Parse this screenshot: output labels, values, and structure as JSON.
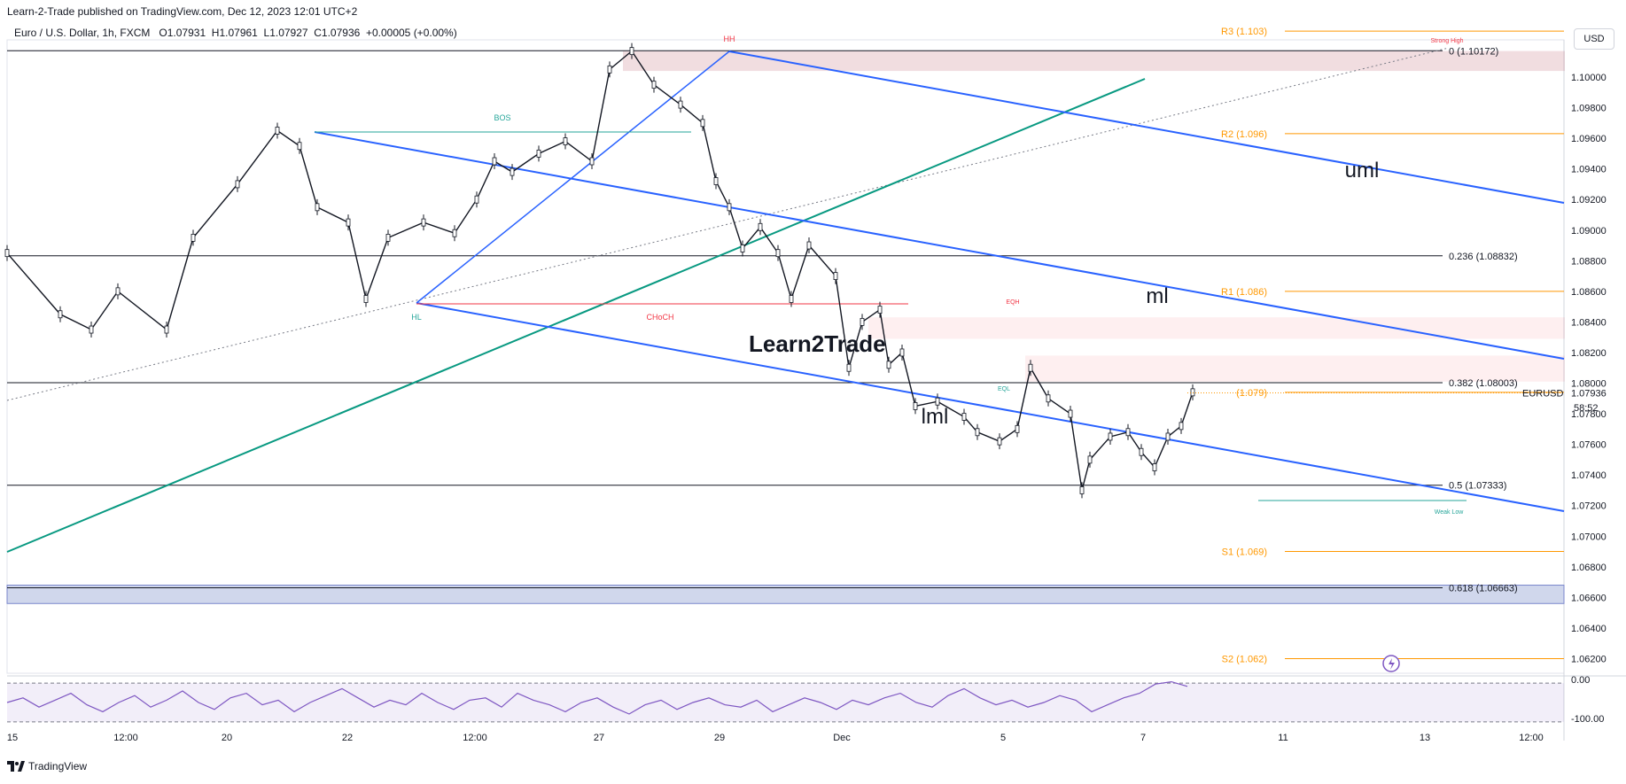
{
  "header": {
    "published": "Learn-2-Trade published on TradingView.com, Dec 12, 2023 12:01 UTC+2",
    "symbol": "Euro / U.S. Dollar, 1h, FXCM",
    "open": "O1.07931",
    "high": "H1.07961",
    "low": "L1.07927",
    "close": "C1.07936",
    "change": "+0.00005 (+0.00%)"
  },
  "currency_button": "USD",
  "footer": {
    "brand": "TradingView"
  },
  "countdown": "58:52",
  "colors": {
    "blue": "#2962ff",
    "green": "#089981",
    "orange": "#ff9800",
    "red": "#f23645",
    "teal": "#26a69a",
    "purple": "#7e57c2"
  },
  "chart_data": {
    "type": "candlestick",
    "symbol_label": "EURUSD",
    "last_price": 1.07936,
    "y_ticks": [
      "1.10000",
      "1.09800",
      "1.09600",
      "1.09400",
      "1.09200",
      "1.09000",
      "1.08800",
      "1.08600",
      "1.08400",
      "1.08200",
      "1.08000",
      "1.07800",
      "1.07600",
      "1.07400",
      "1.07200",
      "1.07000",
      "1.06800",
      "1.06600",
      "1.06400",
      "1.06200"
    ],
    "ylim": [
      1.0612,
      1.1034
    ],
    "x_ticks": [
      "15",
      "12:00",
      "20",
      "22",
      "12:00",
      "27",
      "29",
      "Dec",
      "5",
      "7",
      "11",
      "13",
      "12:00"
    ],
    "price_path": [
      [
        0,
        1.0885
      ],
      [
        60,
        1.0845
      ],
      [
        95,
        1.0835
      ],
      [
        125,
        1.086
      ],
      [
        180,
        1.0835
      ],
      [
        210,
        1.0895
      ],
      [
        260,
        1.093
      ],
      [
        305,
        1.0965
      ],
      [
        330,
        1.0955
      ],
      [
        350,
        1.0915
      ],
      [
        385,
        1.0905
      ],
      [
        405,
        1.0855
      ],
      [
        430,
        1.0895
      ],
      [
        470,
        1.0905
      ],
      [
        505,
        1.0898
      ],
      [
        530,
        1.092
      ],
      [
        550,
        1.0945
      ],
      [
        570,
        1.0938
      ],
      [
        600,
        1.095
      ],
      [
        630,
        1.0958
      ],
      [
        660,
        1.0945
      ],
      [
        680,
        1.1005
      ],
      [
        705,
        1.1017
      ],
      [
        730,
        1.0995
      ],
      [
        760,
        1.0982
      ],
      [
        785,
        1.097
      ],
      [
        800,
        1.0932
      ],
      [
        815,
        1.0915
      ],
      [
        830,
        1.0888
      ],
      [
        850,
        1.0902
      ],
      [
        870,
        1.0885
      ],
      [
        885,
        1.0855
      ],
      [
        905,
        1.089
      ],
      [
        935,
        1.087
      ],
      [
        950,
        1.081
      ],
      [
        965,
        1.084
      ],
      [
        985,
        1.0848
      ],
      [
        995,
        1.0812
      ],
      [
        1010,
        1.082
      ],
      [
        1025,
        1.0785
      ],
      [
        1050,
        1.0788
      ],
      [
        1080,
        1.0778
      ],
      [
        1095,
        1.0768
      ],
      [
        1120,
        1.0762
      ],
      [
        1140,
        1.077
      ],
      [
        1155,
        1.081
      ],
      [
        1175,
        1.079
      ],
      [
        1200,
        1.078
      ],
      [
        1213,
        1.073
      ],
      [
        1222,
        1.075
      ],
      [
        1245,
        1.0765
      ],
      [
        1265,
        1.0768
      ],
      [
        1280,
        1.0755
      ],
      [
        1295,
        1.0745
      ],
      [
        1310,
        1.0765
      ],
      [
        1325,
        1.0772
      ],
      [
        1338,
        1.0794
      ]
    ],
    "fib_levels": [
      {
        "label": "0 (1.10172)",
        "value": 1.10172
      },
      {
        "label": "0.236 (1.08832)",
        "value": 1.08832
      },
      {
        "label": "0.382 (1.08003)",
        "value": 1.08003
      },
      {
        "label": "0.5 (1.07333)",
        "value": 1.07333
      },
      {
        "label": "0.618 (1.06663)",
        "value": 1.06663
      }
    ],
    "pivot_levels": [
      {
        "label": "R3 (1.103)",
        "value": 1.103
      },
      {
        "label": "R2 (1.096)",
        "value": 1.0963
      },
      {
        "label": "R1 (1.086)",
        "value": 1.086
      },
      {
        "label": "(1.079)",
        "value": 1.0794
      },
      {
        "label": "S1 (1.069)",
        "value": 1.069
      },
      {
        "label": "S2 (1.062)",
        "value": 1.062
      }
    ],
    "annotations": {
      "hh": "HH",
      "hl": "HL",
      "bos": "BOS",
      "choch": "CHoCH",
      "eqh": "EQH",
      "eql": "EQL",
      "strong_high": "Strong High",
      "weak_low": "Weak Low",
      "uml": "uml",
      "ml": "ml",
      "lml": "lml",
      "watermark": "Learn2Trade"
    },
    "oscillator": {
      "ticks": [
        "0.00",
        "-100.00"
      ],
      "values": [
        -50,
        -40,
        -60,
        -45,
        -30,
        -55,
        -70,
        -50,
        -35,
        -60,
        -45,
        -25,
        -50,
        -65,
        -40,
        -30,
        -55,
        -45,
        -70,
        -50,
        -35,
        -20,
        -40,
        -60,
        -45,
        -55,
        -30,
        -50,
        -65,
        -45,
        -40,
        -60,
        -30,
        -45,
        -55,
        -70,
        -50,
        -40,
        -60,
        -75,
        -55,
        -45,
        -65,
        -50,
        -40,
        -55,
        -60,
        -45,
        -70,
        -55,
        -40,
        -50,
        -65,
        -45,
        -55,
        -40,
        -30,
        -50,
        -60,
        -35,
        -20,
        -40,
        -55,
        -45,
        -60,
        -50,
        -35,
        -45,
        -70,
        -55,
        -40,
        -30,
        -10,
        -5,
        -15
      ]
    }
  }
}
